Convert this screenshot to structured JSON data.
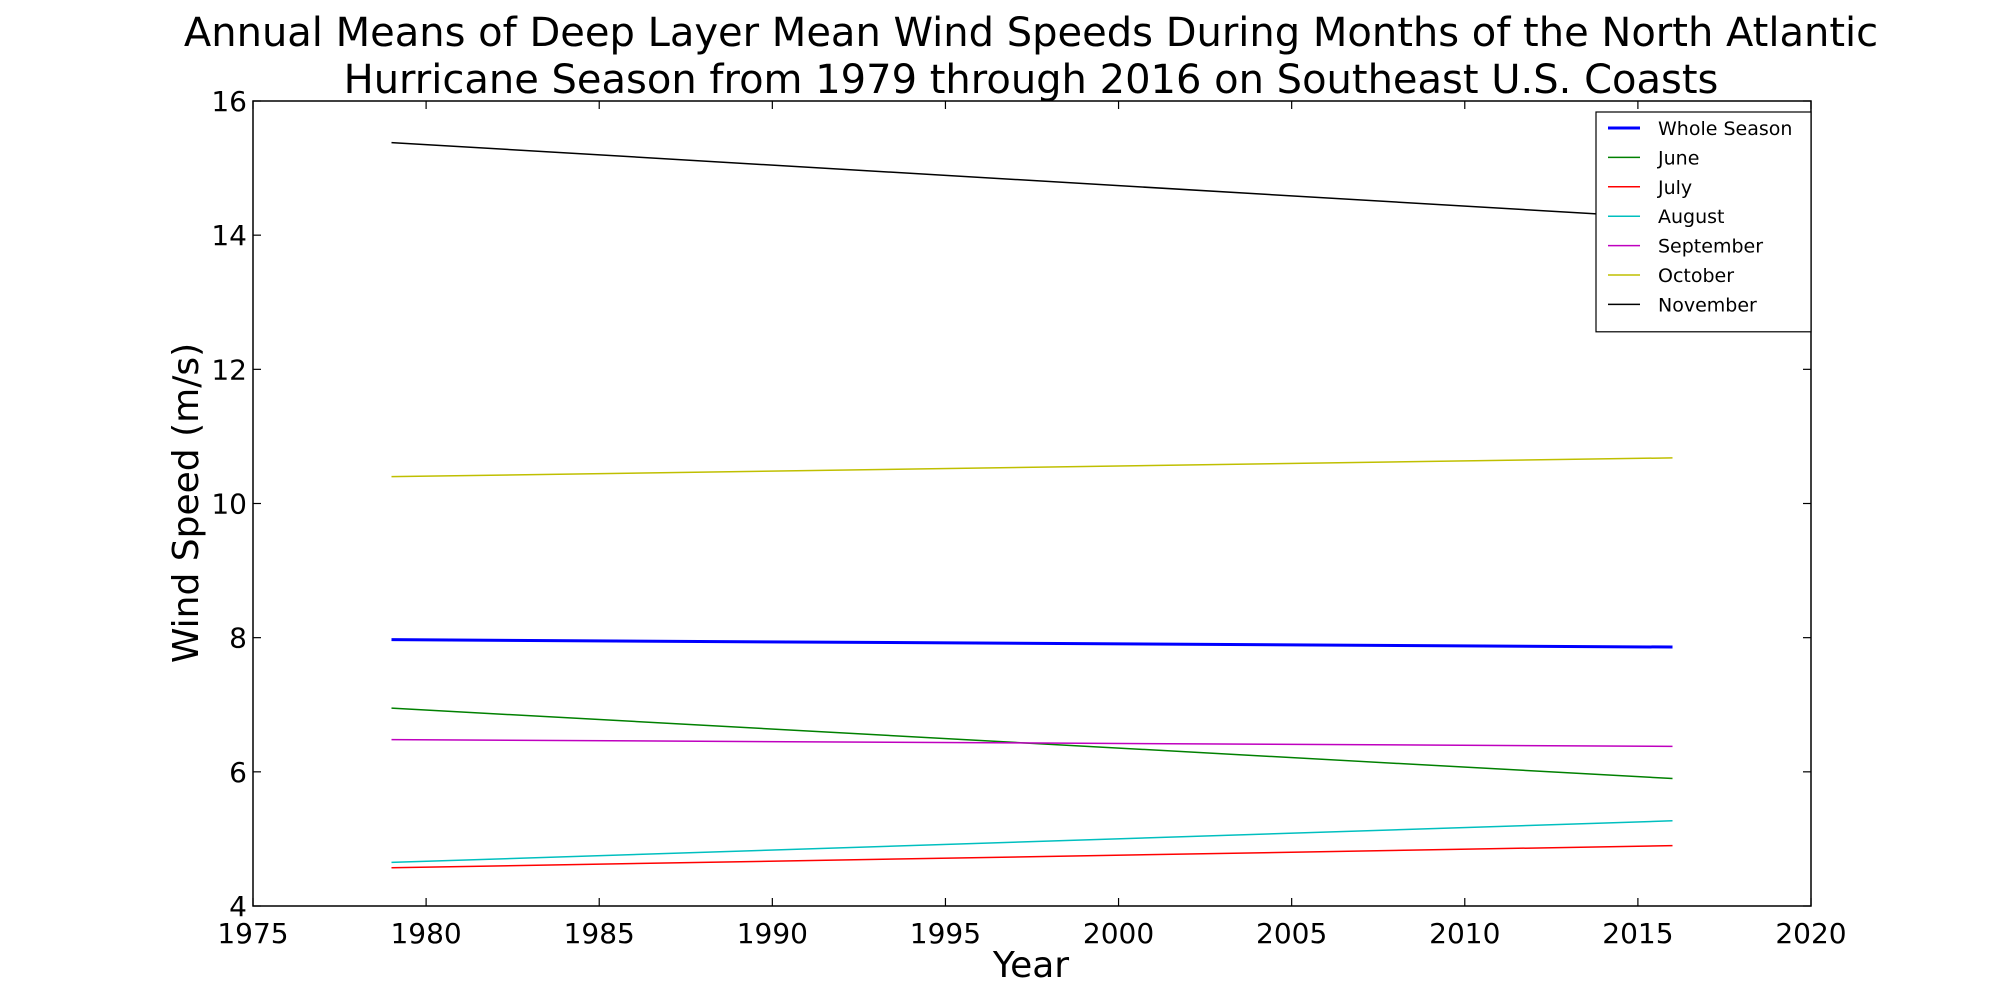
{
  "chart_data": {
    "type": "line",
    "title_lines": [
      "Annual Means of Deep Layer Mean Wind Speeds During Months of the North Atlantic",
      "Hurricane Season from 1979 through 2016 on Southeast U.S. Coasts"
    ],
    "xlabel": "Year",
    "ylabel": "Wind Speed (m/s)",
    "xlim": [
      1975,
      2020
    ],
    "ylim": [
      4,
      16
    ],
    "xticks": [
      1975,
      1980,
      1985,
      1990,
      1995,
      2000,
      2005,
      2010,
      2015,
      2020
    ],
    "yticks": [
      4,
      6,
      8,
      10,
      12,
      14,
      16
    ],
    "grid": false,
    "legend_position": "top-right",
    "x": [
      1979,
      2016
    ],
    "series": [
      {
        "name": "Whole Season",
        "color": "#0000ff",
        "values": [
          7.97,
          7.86
        ]
      },
      {
        "name": "June",
        "color": "#008000",
        "values": [
          6.95,
          5.9
        ]
      },
      {
        "name": "July",
        "color": "#ff0000",
        "values": [
          4.57,
          4.9
        ]
      },
      {
        "name": "August",
        "color": "#00bfbf",
        "values": [
          4.65,
          5.27
        ]
      },
      {
        "name": "September",
        "color": "#bf00bf",
        "values": [
          6.48,
          6.38
        ]
      },
      {
        "name": "October",
        "color": "#bfbf00",
        "values": [
          10.4,
          10.68
        ]
      },
      {
        "name": "November",
        "color": "#000000",
        "values": [
          15.38,
          14.25
        ]
      }
    ]
  }
}
